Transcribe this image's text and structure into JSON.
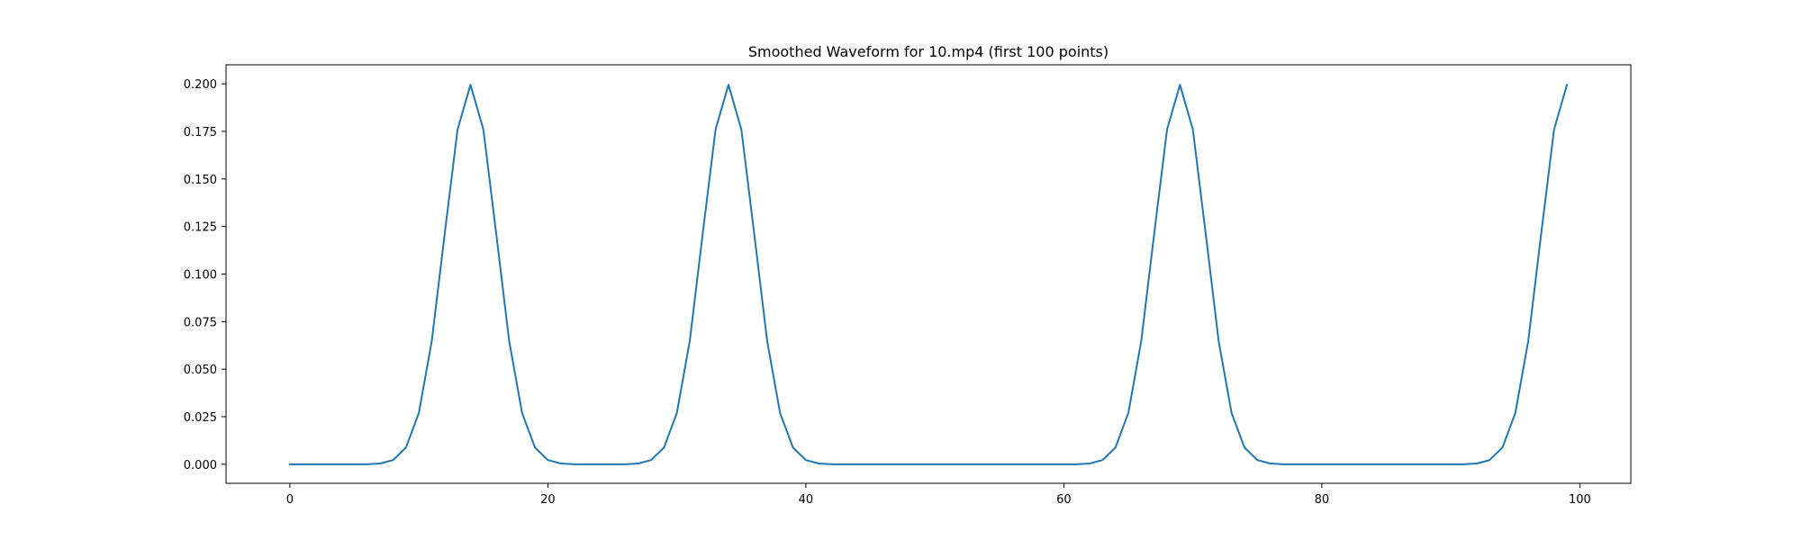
{
  "chart_data": {
    "type": "line",
    "title": "Smoothed Waveform for 10.mp4 (first 100 points)",
    "xlabel": "",
    "ylabel": "",
    "xlim": [
      -4.95,
      103.95
    ],
    "ylim": [
      -0.01,
      0.21
    ],
    "xticks": [
      0,
      20,
      40,
      60,
      80,
      100
    ],
    "xtick_labels": [
      "0",
      "20",
      "40",
      "60",
      "80",
      "100"
    ],
    "yticks": [
      0.0,
      0.025,
      0.05,
      0.075,
      0.1,
      0.125,
      0.15,
      0.175,
      0.2
    ],
    "ytick_labels": [
      "0.000",
      "0.025",
      "0.050",
      "0.075",
      "0.100",
      "0.125",
      "0.150",
      "0.175",
      "0.200"
    ],
    "grid": false,
    "legend": false,
    "series": [
      {
        "color": "#1f77b4",
        "x": [
          0,
          1,
          2,
          3,
          4,
          5,
          6,
          7,
          8,
          9,
          10,
          11,
          12,
          13,
          14,
          15,
          16,
          17,
          18,
          19,
          20,
          21,
          22,
          23,
          24,
          25,
          26,
          27,
          28,
          29,
          30,
          31,
          32,
          33,
          34,
          35,
          36,
          37,
          38,
          39,
          40,
          41,
          42,
          43,
          44,
          45,
          46,
          47,
          48,
          49,
          50,
          51,
          52,
          53,
          54,
          55,
          56,
          57,
          58,
          59,
          60,
          61,
          62,
          63,
          64,
          65,
          66,
          67,
          68,
          69,
          70,
          71,
          72,
          73,
          74,
          75,
          76,
          77,
          78,
          79,
          80,
          81,
          82,
          83,
          84,
          85,
          86,
          87,
          88,
          89,
          90,
          91,
          92,
          93,
          94,
          95,
          96,
          97,
          98,
          99
        ],
        "values": [
          0.0,
          0.0,
          0.0,
          0.0,
          0.0,
          0.0,
          0.0,
          0.0004,
          0.0022,
          0.0088,
          0.027,
          0.0648,
          0.121,
          0.176,
          0.1995,
          0.176,
          0.121,
          0.0648,
          0.027,
          0.0088,
          0.0022,
          0.0004,
          0.0,
          0.0,
          0.0,
          0.0,
          0.0,
          0.0004,
          0.0022,
          0.0088,
          0.027,
          0.0648,
          0.121,
          0.176,
          0.1995,
          0.176,
          0.121,
          0.0648,
          0.027,
          0.0088,
          0.0022,
          0.0004,
          0.0,
          0.0,
          0.0,
          0.0,
          0.0,
          0.0,
          0.0,
          0.0,
          0.0,
          0.0,
          0.0,
          0.0,
          0.0,
          0.0,
          0.0,
          0.0,
          0.0,
          0.0,
          0.0,
          0.0,
          0.0004,
          0.0022,
          0.0088,
          0.027,
          0.0648,
          0.121,
          0.176,
          0.1995,
          0.176,
          0.121,
          0.0648,
          0.027,
          0.0088,
          0.0022,
          0.0004,
          0.0,
          0.0,
          0.0,
          0.0,
          0.0,
          0.0,
          0.0,
          0.0,
          0.0,
          0.0,
          0.0,
          0.0,
          0.0,
          0.0,
          0.0,
          0.0004,
          0.0022,
          0.0088,
          0.027,
          0.0648,
          0.121,
          0.176,
          0.1995
        ]
      }
    ]
  }
}
